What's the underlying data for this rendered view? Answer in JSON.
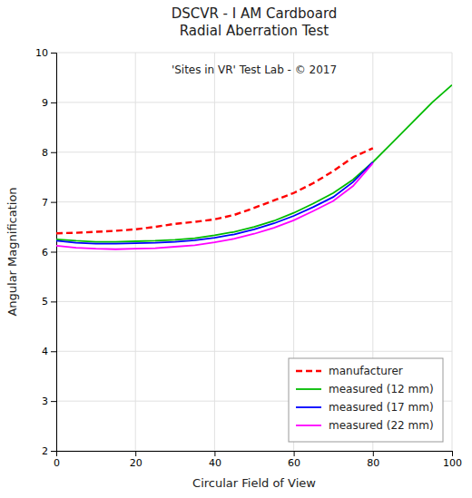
{
  "chart_data": {
    "type": "line",
    "title": "DSCVR - I AM Cardboard\nRadial Aberration Test",
    "subtitle": "'Sites in VR' Test Lab - © 2017",
    "xlabel": "Circular Field of View",
    "ylabel": "Angular Magnification",
    "xlim": [
      0,
      100
    ],
    "ylim": [
      2,
      10
    ],
    "xticks": [
      0,
      20,
      40,
      60,
      80,
      100
    ],
    "yticks": [
      2,
      3,
      4,
      5,
      6,
      7,
      8,
      9,
      10
    ],
    "grid": true,
    "legend": "lower right",
    "series": [
      {
        "name": "manufacturer",
        "color": "#ff0000",
        "line_style": "dashed",
        "x": [
          0,
          5,
          10,
          15,
          20,
          25,
          30,
          35,
          40,
          45,
          50,
          55,
          60,
          65,
          70,
          75,
          80
        ],
        "values": [
          6.37,
          6.38,
          6.4,
          6.42,
          6.45,
          6.5,
          6.56,
          6.6,
          6.65,
          6.74,
          6.88,
          7.03,
          7.18,
          7.38,
          7.62,
          7.9,
          8.08
        ]
      },
      {
        "name": "measured (12 mm)",
        "color": "#00bb00",
        "line_style": "solid",
        "x": [
          0,
          5,
          10,
          15,
          20,
          25,
          30,
          35,
          40,
          45,
          50,
          55,
          60,
          65,
          70,
          75,
          80,
          85,
          90,
          95,
          100
        ],
        "values": [
          6.25,
          6.22,
          6.2,
          6.2,
          6.21,
          6.22,
          6.24,
          6.27,
          6.33,
          6.4,
          6.5,
          6.62,
          6.78,
          6.97,
          7.18,
          7.45,
          7.8,
          8.2,
          8.6,
          9.0,
          9.35
        ]
      },
      {
        "name": "measured (17 mm)",
        "color": "#0000ff",
        "line_style": "solid",
        "x": [
          0,
          5,
          10,
          15,
          20,
          25,
          30,
          35,
          40,
          45,
          50,
          55,
          60,
          65,
          70,
          75,
          80
        ],
        "values": [
          6.22,
          6.18,
          6.16,
          6.16,
          6.17,
          6.18,
          6.2,
          6.23,
          6.28,
          6.35,
          6.45,
          6.57,
          6.72,
          6.9,
          7.1,
          7.4,
          7.8
        ]
      },
      {
        "name": "measured (22 mm)",
        "color": "#ff00ff",
        "line_style": "solid",
        "x": [
          0,
          5,
          10,
          15,
          20,
          25,
          30,
          35,
          40,
          45,
          50,
          55,
          60,
          65,
          70,
          75,
          80
        ],
        "values": [
          6.12,
          6.08,
          6.06,
          6.05,
          6.06,
          6.07,
          6.1,
          6.13,
          6.19,
          6.26,
          6.36,
          6.48,
          6.63,
          6.82,
          7.02,
          7.32,
          7.78
        ]
      }
    ]
  }
}
